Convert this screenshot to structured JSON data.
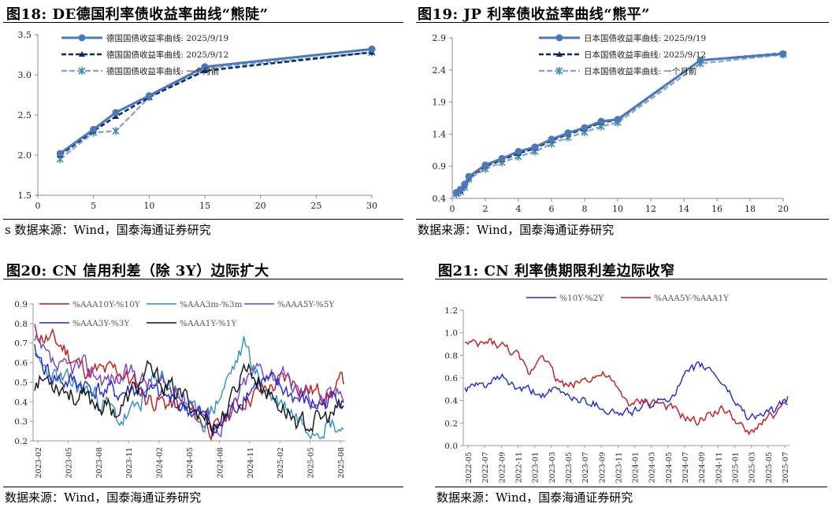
{
  "charts": [
    {
      "id": "de",
      "title": "图18:  DE德国利率债收益率曲线“熊陡”",
      "source": "s 数据来源：Wind，国泰海通证券研究",
      "chart_data": {
        "type": "line",
        "xlim": [
          0,
          30
        ],
        "ylim": [
          1.5,
          3.5
        ],
        "xticks": [
          0,
          5,
          10,
          15,
          20,
          25,
          30
        ],
        "yticks": [
          1.5,
          2.0,
          2.5,
          3.0,
          3.5
        ],
        "ytick_labels": [
          "1.5",
          "2.0",
          "2.5",
          "3.0",
          "3.5"
        ],
        "series": [
          {
            "name": "德国国债收益率曲线: 2025/9/19",
            "color": "#4a78b8",
            "dash": "",
            "marker": "circle",
            "width": 3,
            "x": [
              2,
              5,
              7,
              10,
              15,
              30
            ],
            "y": [
              2.02,
              2.32,
              2.53,
              2.74,
              3.1,
              3.32
            ]
          },
          {
            "name": "德国国债收益率曲线: 2025/9/12",
            "color": "#0d2a5e",
            "dash": "6,3",
            "marker": "triangle",
            "width": 2.5,
            "x": [
              2,
              5,
              7,
              10,
              15,
              30
            ],
            "y": [
              2.0,
              2.3,
              2.48,
              2.72,
              3.05,
              3.28
            ]
          },
          {
            "name": "德国国债收益率曲线: 一个月前",
            "color": "#8fa6c9",
            "dash": "7,3",
            "marker": "star",
            "width": 2.5,
            "x": [
              2,
              5,
              7,
              10,
              15,
              30
            ],
            "y": [
              1.95,
              2.28,
              2.3,
              2.72,
              3.08,
              3.28
            ]
          }
        ]
      }
    },
    {
      "id": "jp",
      "title": "图19:  JP 利率债收益率曲线“熊平”",
      "source": "数据来源：Wind，国泰海通证券研究",
      "chart_data": {
        "type": "line",
        "xlim": [
          0,
          20
        ],
        "ylim": [
          0.4,
          2.9
        ],
        "xticks": [
          0,
          2,
          4,
          6,
          8,
          10,
          12,
          14,
          16,
          18,
          20
        ],
        "yticks": [
          0.4,
          0.9,
          1.4,
          1.9,
          2.4,
          2.9
        ],
        "ytick_labels": [
          "0.4",
          "0.9",
          "1.4",
          "1.9",
          "2.4",
          "2.9"
        ],
        "series": [
          {
            "name": "日本国债收益率曲线: 2025/9/19",
            "color": "#4a78b8",
            "dash": "",
            "marker": "circle",
            "width": 3,
            "x": [
              0.25,
              0.5,
              0.75,
              1,
              2,
              3,
              4,
              5,
              6,
              7,
              8,
              9,
              10,
              15,
              20
            ],
            "y": [
              0.49,
              0.54,
              0.62,
              0.74,
              0.92,
              1.02,
              1.13,
              1.2,
              1.32,
              1.42,
              1.5,
              1.6,
              1.63,
              2.55,
              2.65
            ]
          },
          {
            "name": "日本国债收益率曲线: 2025/9/12",
            "color": "#0d2a5e",
            "dash": "6,3",
            "marker": "triangle",
            "width": 2.5,
            "x": [
              0.25,
              0.5,
              0.75,
              1,
              2,
              3,
              4,
              5,
              6,
              7,
              8,
              9,
              10,
              15,
              20
            ],
            "y": [
              0.48,
              0.52,
              0.6,
              0.72,
              0.9,
              1.0,
              1.1,
              1.18,
              1.3,
              1.4,
              1.48,
              1.58,
              1.62,
              2.55,
              2.66
            ]
          },
          {
            "name": "日本国债收益率曲线: 一个月前",
            "color": "#8fa6c9",
            "dash": "7,3",
            "marker": "star",
            "width": 2.5,
            "x": [
              0.25,
              0.5,
              0.75,
              1,
              2,
              3,
              4,
              5,
              6,
              7,
              8,
              9,
              10,
              15,
              20
            ],
            "y": [
              0.47,
              0.5,
              0.57,
              0.7,
              0.86,
              0.96,
              1.05,
              1.13,
              1.25,
              1.35,
              1.43,
              1.52,
              1.58,
              2.5,
              2.64
            ]
          }
        ]
      }
    },
    {
      "id": "cn-credit",
      "title": "图20:  CN 信用利差（除 3Y）边际扩大",
      "source": "数据来源：Wind，国泰海通证券研究",
      "chart_data": {
        "type": "line",
        "ylim": [
          0.2,
          0.9
        ],
        "yticks": [
          0.2,
          0.3,
          0.4,
          0.5,
          0.6,
          0.7,
          0.8,
          0.9
        ],
        "ytick_labels": [
          "0.2",
          "0.3",
          "0.4",
          "0.5",
          "0.6",
          "0.7",
          "0.8",
          "0.9"
        ],
        "categories": [
          "2023-02",
          "2023-05",
          "2023-08",
          "2023-11",
          "2024-02",
          "2024-05",
          "2024-08",
          "2024-11",
          "2025-02",
          "2025-05",
          "2025-08"
        ],
        "series": [
          {
            "name": "%AAA10Y-%10Y",
            "color": "#c0171b",
            "seed": 11,
            "anchors": [
              0.76,
              0.72,
              0.68,
              0.6,
              0.55,
              0.55,
              0.56,
              0.5,
              0.42,
              0.4,
              0.38,
              0.35,
              0.3,
              0.25,
              0.36,
              0.42,
              0.45,
              0.48,
              0.52,
              0.48,
              0.45,
              0.44,
              0.5
            ]
          },
          {
            "name": "%AAA3m-%3m",
            "color": "#2f8fc0",
            "seed": 23,
            "anchors": [
              0.6,
              0.55,
              0.5,
              0.48,
              0.45,
              0.4,
              0.3,
              0.34,
              0.45,
              0.55,
              0.45,
              0.35,
              0.3,
              0.4,
              0.55,
              0.7,
              0.5,
              0.42,
              0.38,
              0.3,
              0.28,
              0.3,
              0.26
            ]
          },
          {
            "name": "%AAA5Y-%5Y",
            "color": "#7b3fc4",
            "seed": 37,
            "anchors": [
              0.7,
              0.6,
              0.55,
              0.58,
              0.56,
              0.52,
              0.52,
              0.55,
              0.5,
              0.48,
              0.45,
              0.42,
              0.35,
              0.27,
              0.35,
              0.5,
              0.58,
              0.55,
              0.5,
              0.45,
              0.42,
              0.42,
              0.46
            ]
          },
          {
            "name": "%AAA3Y-%3Y",
            "color": "#1f2bc9",
            "seed": 41,
            "anchors": [
              0.65,
              0.55,
              0.5,
              0.5,
              0.47,
              0.45,
              0.44,
              0.46,
              0.45,
              0.42,
              0.4,
              0.36,
              0.32,
              0.26,
              0.34,
              0.45,
              0.5,
              0.48,
              0.45,
              0.4,
              0.38,
              0.4,
              0.45
            ]
          },
          {
            "name": "%AAA1Y-%1Y",
            "color": "#111111",
            "seed": 53,
            "anchors": [
              0.5,
              0.52,
              0.48,
              0.42,
              0.4,
              0.38,
              0.35,
              0.45,
              0.55,
              0.5,
              0.45,
              0.4,
              0.32,
              0.28,
              0.4,
              0.6,
              0.5,
              0.42,
              0.35,
              0.28,
              0.3,
              0.32,
              0.37
            ]
          }
        ]
      }
    },
    {
      "id": "cn-term",
      "title": "图21:  CN 利率债期限利差边际收窄",
      "source": "数据来源：Wind，国泰海通证券研究",
      "chart_data": {
        "type": "line",
        "ylim": [
          0.0,
          1.2
        ],
        "yticks": [
          0.0,
          0.2,
          0.4,
          0.6,
          0.8,
          1.0,
          1.2
        ],
        "ytick_labels": [
          "0.0",
          "0.2",
          "0.4",
          "0.6",
          "0.8",
          "1.0",
          "1.2"
        ],
        "categories": [
          "2022-05",
          "2022-07",
          "2022-09",
          "2022-11",
          "2023-01",
          "2023-03",
          "2023-05",
          "2023-07",
          "2023-09",
          "2023-11",
          "2024-01",
          "2024-03",
          "2024-05",
          "2024-07",
          "2024-09",
          "2024-11",
          "2025-01",
          "2025-03",
          "2025-05",
          "2025-07"
        ],
        "series": [
          {
            "name": "%10Y-%2Y",
            "color": "#1f2bc9",
            "seed": 61,
            "anchors": [
              0.5,
              0.52,
              0.55,
              0.6,
              0.5,
              0.48,
              0.45,
              0.48,
              0.45,
              0.4,
              0.38,
              0.32,
              0.28,
              0.3,
              0.35,
              0.38,
              0.45,
              0.6,
              0.7,
              0.68,
              0.55,
              0.38,
              0.25,
              0.28,
              0.3,
              0.42
            ]
          },
          {
            "name": "%AAA5Y-%AAA1Y",
            "color": "#c0171b",
            "seed": 73,
            "anchors": [
              0.9,
              0.88,
              0.92,
              0.88,
              0.8,
              0.62,
              0.85,
              0.6,
              0.52,
              0.58,
              0.62,
              0.62,
              0.45,
              0.35,
              0.4,
              0.38,
              0.32,
              0.25,
              0.2,
              0.3,
              0.32,
              0.22,
              0.08,
              0.22,
              0.28,
              0.35
            ]
          }
        ]
      }
    }
  ]
}
